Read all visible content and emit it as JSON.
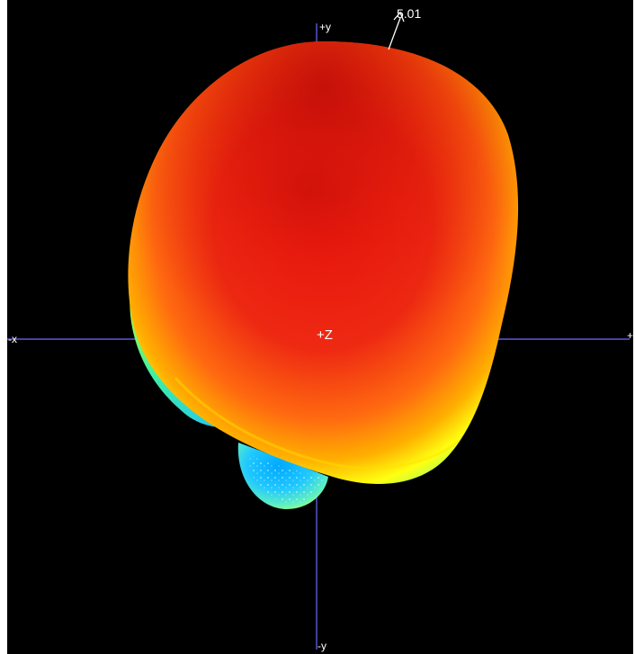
{
  "viewer": {
    "background_color": "#000000",
    "axis_color": "#5b5bd6",
    "axes": {
      "pos_y": "+y",
      "neg_y": "-y",
      "neg_x": "-x",
      "pos_x": "+",
      "center": "+Z"
    },
    "max_gain_label": "5.01",
    "colormap": [
      "#00a0ff",
      "#00e0ff",
      "#40ff80",
      "#ffff00",
      "#ff9900",
      "#ff2200",
      "#b80000"
    ]
  }
}
